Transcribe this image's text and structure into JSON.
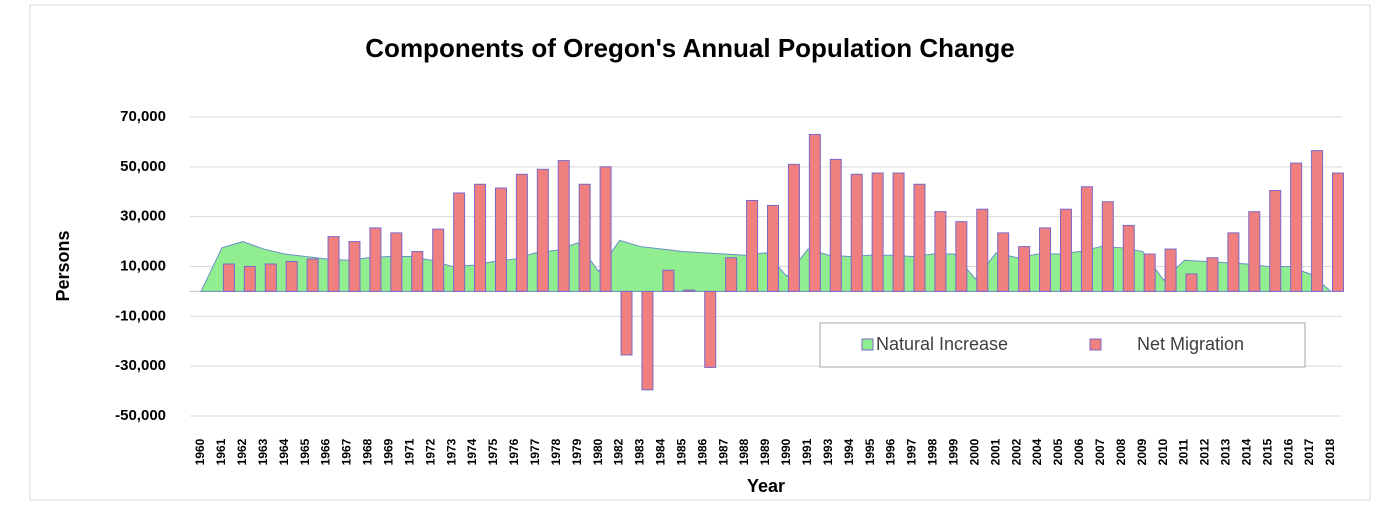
{
  "chart_data": {
    "type": "bar_area",
    "title": "Components of Oregon's Annual Population Change",
    "ylabel": "Persons",
    "xlabel": "Year",
    "categories": [
      "1960",
      "1961",
      "1962",
      "1963",
      "1964",
      "1965",
      "1966",
      "1967",
      "1968",
      "1969",
      "1971",
      "1972",
      "1973",
      "1974",
      "1975",
      "1976",
      "1977",
      "1978",
      "1979",
      "1980",
      "1982",
      "1983",
      "1984",
      "1985",
      "1986",
      "1987",
      "1988",
      "1989",
      "1990",
      "1991",
      "1993",
      "1994",
      "1995",
      "1996",
      "1997",
      "1998",
      "1999",
      "2000",
      "2001",
      "2002",
      "2004",
      "2005",
      "2006",
      "2007",
      "2008",
      "2009",
      "2010",
      "2011",
      "2012",
      "2013",
      "2014",
      "2015",
      "2016",
      "2017",
      "2018"
    ],
    "series": [
      {
        "name": "Natural Increase",
        "kind": "area",
        "color": "#90ee90",
        "values": [
          0,
          17500,
          20000,
          17000,
          15000,
          14000,
          13000,
          12500,
          13500,
          14000,
          14000,
          12500,
          10000,
          10500,
          12000,
          13000,
          15500,
          16500,
          19500,
          8000,
          20500,
          18000,
          17000,
          16000,
          15500,
          15000,
          14500,
          15500,
          6000,
          17000,
          14500,
          14000,
          14500,
          14500,
          14000,
          15000,
          15000,
          5000,
          15500,
          13500,
          15000,
          15000,
          16000,
          18000,
          17500,
          16000,
          4500,
          12500,
          12000,
          11500,
          11000,
          10000,
          10000,
          7000,
          0
        ]
      },
      {
        "name": "Net Migration",
        "kind": "bar",
        "color": "#f08080",
        "values": [
          null,
          11000,
          10000,
          11000,
          12000,
          13000,
          22000,
          20000,
          25500,
          23500,
          16000,
          25000,
          39500,
          43000,
          41500,
          47000,
          49000,
          52500,
          43000,
          50000,
          -25500,
          -39500,
          8500,
          500,
          -30500,
          13500,
          36500,
          34500,
          51000,
          63000,
          53000,
          47000,
          47500,
          47500,
          43000,
          32000,
          28000,
          33000,
          23500,
          18000,
          25500,
          33000,
          42000,
          36000,
          26500,
          15000,
          17000,
          7000,
          13500,
          23500,
          32000,
          40500,
          51500,
          56500,
          47500
        ]
      }
    ],
    "ylim": [
      -50000,
      70000
    ],
    "yticks": [
      {
        "value": -50000,
        "label": "-50,000"
      },
      {
        "value": -30000,
        "label": "-30,000"
      },
      {
        "value": -10000,
        "label": "-10,000"
      },
      {
        "value": 10000,
        "label": "10,000"
      },
      {
        "value": 30000,
        "label": "30,000"
      },
      {
        "value": 50000,
        "label": "50,000"
      },
      {
        "value": 70000,
        "label": "70,000"
      }
    ],
    "grid": true,
    "legend": "lower right"
  }
}
